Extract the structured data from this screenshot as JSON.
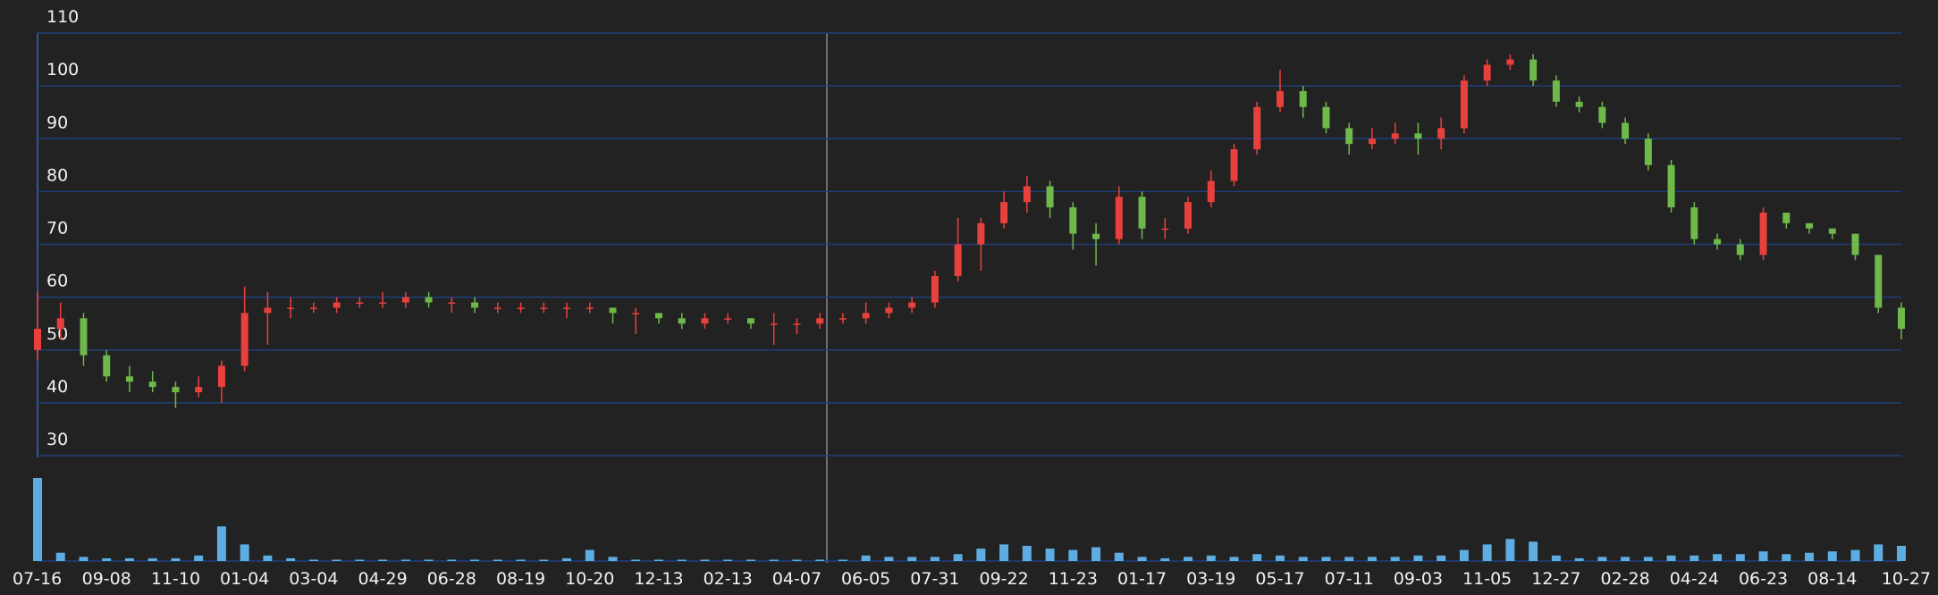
{
  "chart_data": {
    "type": "candlestick",
    "categories": [
      "07-16",
      null,
      null,
      "09-08",
      null,
      null,
      "11-10",
      null,
      null,
      "01-04",
      null,
      null,
      "03-04",
      null,
      null,
      "04-29",
      null,
      null,
      "06-28",
      null,
      null,
      "08-19",
      null,
      null,
      "10-20",
      null,
      null,
      "12-13",
      null,
      null,
      "02-13",
      null,
      null,
      "04-07",
      null,
      null,
      "06-05",
      null,
      null,
      "07-31",
      null,
      null,
      "09-22",
      null,
      null,
      "11-23",
      null,
      null,
      "01-17",
      null,
      null,
      "03-19",
      null,
      null,
      "05-17",
      null,
      null,
      "07-11",
      null,
      null,
      "09-03",
      null,
      null,
      "11-05",
      null,
      null,
      "12-27",
      null,
      null,
      "02-28",
      null,
      null,
      "04-24",
      null,
      null,
      "06-23",
      null,
      null,
      "08-14",
      null,
      null,
      "10-27"
    ],
    "open": [
      50,
      54,
      56,
      49,
      45,
      44,
      43,
      42,
      43,
      47,
      57,
      58,
      58,
      58,
      59,
      59,
      59,
      60,
      59,
      59,
      58,
      58,
      58,
      58,
      58,
      58,
      57,
      57,
      56,
      55,
      56,
      56,
      55,
      55,
      55,
      56,
      56,
      57,
      58,
      59,
      64,
      70,
      74,
      78,
      81,
      77,
      72,
      71,
      79,
      73,
      73,
      78,
      82,
      88,
      96,
      99,
      96,
      92,
      89,
      90,
      91,
      90,
      92,
      101,
      104,
      105,
      101,
      97,
      96,
      93,
      90,
      85,
      77,
      71,
      70,
      68,
      76,
      74,
      73,
      72,
      68,
      58
    ],
    "high": [
      61,
      59,
      57,
      50,
      47,
      46,
      44,
      45,
      48,
      62,
      61,
      60,
      59,
      60,
      60,
      61,
      61,
      61,
      60,
      60,
      59,
      59,
      59,
      59,
      59,
      58,
      58,
      57,
      57,
      57,
      57,
      56,
      57,
      56,
      57,
      57,
      59,
      59,
      60,
      65,
      75,
      75,
      80,
      83,
      82,
      78,
      74,
      81,
      80,
      75,
      79,
      84,
      89,
      97,
      103,
      100,
      97,
      93,
      92,
      93,
      93,
      94,
      102,
      105,
      106,
      106,
      102,
      98,
      97,
      94,
      91,
      86,
      78,
      72,
      71,
      77,
      76,
      74,
      73,
      72,
      68,
      59
    ],
    "low": [
      48,
      52,
      47,
      44,
      42,
      42,
      39,
      41,
      40,
      46,
      51,
      56,
      57,
      57,
      58,
      58,
      58,
      58,
      57,
      57,
      57,
      57,
      57,
      56,
      57,
      55,
      53,
      55,
      54,
      54,
      55,
      54,
      51,
      53,
      54,
      55,
      55,
      56,
      57,
      58,
      63,
      65,
      73,
      76,
      75,
      69,
      66,
      70,
      71,
      71,
      72,
      77,
      81,
      87,
      95,
      94,
      91,
      87,
      88,
      89,
      87,
      88,
      91,
      100,
      103,
      100,
      96,
      95,
      92,
      89,
      84,
      76,
      70,
      69,
      67,
      67,
      73,
      72,
      71,
      67,
      57,
      52
    ],
    "close": [
      54,
      56,
      49,
      45,
      44,
      43,
      42,
      43,
      47,
      57,
      58,
      58,
      58,
      59,
      59,
      59,
      60,
      59,
      59,
      58,
      58,
      58,
      58,
      58,
      58,
      57,
      57,
      56,
      55,
      56,
      56,
      55,
      55,
      55,
      56,
      56,
      57,
      58,
      59,
      64,
      70,
      74,
      78,
      81,
      77,
      72,
      71,
      79,
      73,
      73,
      78,
      82,
      88,
      96,
      99,
      96,
      92,
      89,
      90,
      91,
      90,
      92,
      101,
      104,
      105,
      101,
      97,
      96,
      93,
      90,
      85,
      77,
      71,
      70,
      68,
      76,
      74,
      73,
      72,
      68,
      58,
      54
    ],
    "volume": [
      60,
      6,
      3,
      2,
      2,
      2,
      2,
      4,
      25,
      12,
      4,
      2,
      1,
      1,
      1,
      1,
      1,
      1,
      1,
      1,
      1,
      1,
      1,
      2,
      8,
      3,
      1,
      1,
      1,
      1,
      1,
      1,
      1,
      1,
      1,
      1,
      4,
      3,
      3,
      3,
      5,
      9,
      12,
      11,
      9,
      8,
      10,
      6,
      3,
      2,
      3,
      4,
      3,
      5,
      4,
      3,
      3,
      3,
      3,
      3,
      4,
      4,
      8,
      12,
      16,
      14,
      4,
      2,
      3,
      3,
      3,
      4,
      4,
      5,
      5,
      7,
      5,
      6,
      7,
      8,
      12,
      11
    ],
    "up_color": "#e8413d",
    "down_color": "#6fb84a",
    "volume_color": "#5dade2",
    "ylim": [
      30,
      110
    ],
    "yticks": [
      30,
      40,
      50,
      60,
      70,
      80,
      90,
      100,
      110
    ],
    "grid": true
  }
}
